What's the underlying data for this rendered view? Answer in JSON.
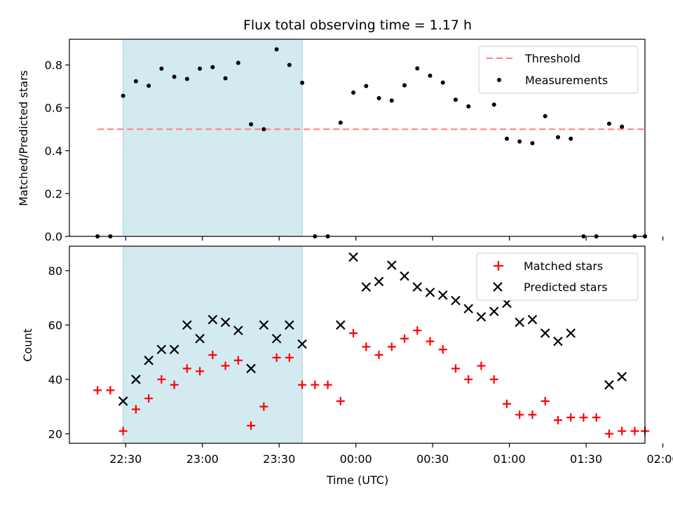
{
  "chart_data": {
    "title": "Flux total observing time = 1.17 h",
    "xlabel": "Time (UTC)",
    "x_ticks": [
      "22:30",
      "23:00",
      "23:30",
      "00:00",
      "00:30",
      "01:00",
      "01:30",
      "02:00"
    ],
    "x_tick_minutes": [
      0,
      30,
      60,
      90,
      120,
      150,
      180,
      210
    ],
    "x_unit": "minutes since 22:30 UTC",
    "xlim": [
      -22,
      203
    ],
    "shaded_interval": [
      -1,
      69
    ],
    "shade_color": "#d3eaf0",
    "panels": [
      {
        "type": "scatter",
        "ylabel": "Matched/Predicted stars",
        "ylim": [
          0,
          0.92
        ],
        "y_ticks": [
          0.0,
          0.2,
          0.4,
          0.6,
          0.8
        ],
        "y_tick_labels": [
          "0.0",
          "0.2",
          "0.4",
          "0.6",
          "0.8"
        ],
        "legend": [
          "Threshold",
          "Measurements"
        ],
        "threshold": {
          "name": "Threshold",
          "value": 0.5,
          "x_range": [
            -11,
            203
          ],
          "color": "#ff7f7f"
        },
        "series": [
          {
            "name": "Measurements",
            "marker": "dot",
            "color": "#000000",
            "x": [
              -11,
              -6,
              -1,
              4,
              9,
              14,
              19,
              24,
              29,
              34,
              39,
              44,
              49,
              54,
              59,
              64,
              69,
              74,
              79,
              84,
              89,
              94,
              99,
              104,
              109,
              114,
              119,
              124,
              129,
              134,
              139,
              144,
              149,
              154,
              159,
              164,
              169,
              174,
              179,
              184,
              189,
              194,
              199,
              203
            ],
            "y": [
              0.0,
              0.0,
              0.656,
              0.724,
              0.703,
              0.783,
              0.745,
              0.735,
              0.783,
              0.79,
              0.738,
              0.81,
              0.523,
              0.5,
              0.873,
              0.8,
              0.717,
              0.0,
              0.0,
              0.531,
              0.671,
              0.702,
              0.645,
              0.634,
              0.705,
              0.784,
              0.75,
              0.718,
              0.638,
              0.607,
              0.714,
              0.615,
              0.456,
              0.443,
              0.435,
              0.561,
              0.463,
              0.456,
              0.0,
              0.0,
              0.526,
              0.512,
              0.0,
              0.0
            ]
          }
        ]
      },
      {
        "type": "scatter",
        "ylabel": "Count",
        "ylim": [
          16.5,
          89
        ],
        "y_ticks": [
          20,
          40,
          60,
          80
        ],
        "y_tick_labels": [
          "20",
          "40",
          "60",
          "80"
        ],
        "legend": [
          "Matched stars",
          "Predicted stars"
        ],
        "series": [
          {
            "name": "Matched stars",
            "marker": "plus",
            "color": "#ff0000",
            "x": [
              -11,
              -6,
              -1,
              4,
              9,
              14,
              19,
              24,
              29,
              34,
              39,
              44,
              49,
              54,
              59,
              64,
              69,
              74,
              79,
              84,
              89,
              94,
              99,
              104,
              109,
              114,
              119,
              124,
              129,
              134,
              139,
              144,
              149,
              154,
              159,
              164,
              169,
              174,
              179,
              184,
              189,
              194,
              199,
              203
            ],
            "y": [
              36,
              36,
              21,
              29,
              33,
              40,
              38,
              44,
              43,
              49,
              45,
              47,
              23,
              30,
              48,
              48,
              38,
              38,
              38,
              32,
              57,
              52,
              49,
              52,
              55,
              58,
              54,
              51,
              44,
              40,
              45,
              40,
              31,
              27,
              27,
              32,
              25,
              26,
              26,
              26,
              20,
              21,
              21,
              21
            ]
          },
          {
            "name": "Predicted stars",
            "marker": "x",
            "color": "#000000",
            "x": [
              -1,
              4,
              9,
              14,
              19,
              24,
              29,
              34,
              39,
              44,
              49,
              54,
              59,
              64,
              69,
              84,
              89,
              94,
              99,
              104,
              109,
              114,
              119,
              124,
              129,
              134,
              139,
              144,
              149,
              154,
              159,
              164,
              169,
              174,
              189,
              194
            ],
            "y": [
              32,
              40,
              47,
              51,
              51,
              60,
              55,
              62,
              61,
              58,
              44,
              60,
              55,
              60,
              53,
              60,
              85,
              74,
              76,
              82,
              78,
              74,
              72,
              71,
              69,
              66,
              63,
              65,
              68,
              61,
              62,
              57,
              54,
              57,
              38,
              41
            ]
          }
        ]
      }
    ]
  }
}
